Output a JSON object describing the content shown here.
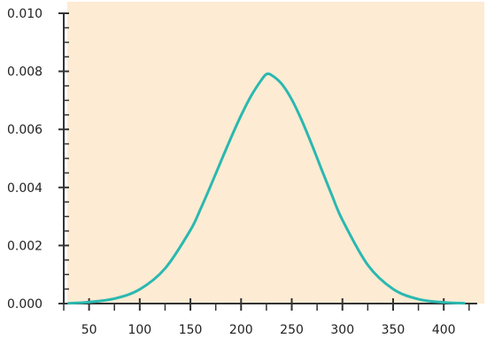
{
  "colors": {
    "page_background": "#ffffff",
    "plot_background": "#fdebd3",
    "curve": "#2ab8b0",
    "axis": "#333333"
  },
  "chart_data": {
    "type": "line",
    "title": "",
    "xlabel": "",
    "ylabel": "",
    "xlim": [
      25,
      440
    ],
    "ylim": [
      0,
      0.01
    ],
    "grid": false,
    "legend": "none",
    "x_ticks": [
      50,
      100,
      150,
      200,
      250,
      300,
      350,
      400
    ],
    "x_tick_labels": [
      "50",
      "100",
      "150",
      "200",
      "250",
      "300",
      "350",
      "400"
    ],
    "y_ticks": [
      0,
      0.002,
      0.004,
      0.006,
      0.008,
      0.01
    ],
    "y_tick_labels": [
      "0.000",
      "0.002",
      "0.004",
      "0.006",
      "0.008",
      "0.010"
    ],
    "series": [
      {
        "values_x": [
          30,
          50,
          75,
          100,
          125,
          150,
          160,
          170,
          180,
          190,
          200,
          210,
          220,
          225,
          230,
          240,
          250,
          260,
          270,
          280,
          290,
          300,
          325,
          350,
          375,
          400,
          420
        ],
        "values_y": [
          1e-05,
          5e-05,
          0.00017,
          0.00049,
          0.00121,
          0.00253,
          0.00326,
          0.00406,
          0.00489,
          0.00571,
          0.00648,
          0.00716,
          0.0077,
          0.0079,
          0.00787,
          0.00757,
          0.00703,
          0.0063,
          0.00546,
          0.00457,
          0.0037,
          0.00288,
          0.00133,
          0.0005,
          0.00015,
          4e-05,
          1e-05
        ]
      }
    ]
  }
}
